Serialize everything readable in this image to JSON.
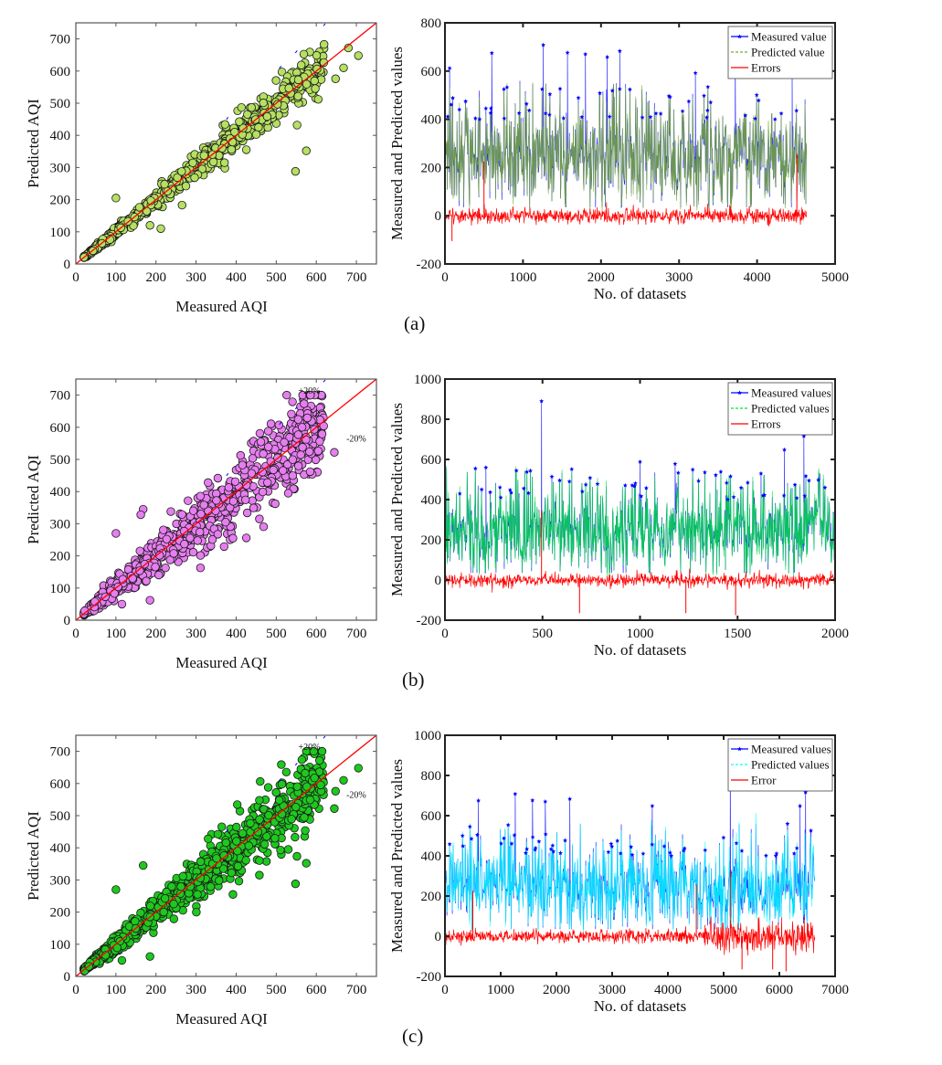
{
  "panels": [
    {
      "label": "(a)",
      "scatter": {
        "type": "scatter",
        "xlabel": "Measured AQI",
        "ylabel": "Predicted AQI",
        "xlim": [
          0,
          750
        ],
        "ylim": [
          0,
          750
        ],
        "xticks": [
          0,
          100,
          200,
          300,
          400,
          500,
          600,
          700
        ],
        "yticks": [
          0,
          100,
          200,
          300,
          400,
          500,
          600,
          700
        ],
        "marker_color": "#b5e061",
        "annotations": [],
        "reference_lines": [
          {
            "name": "1:1 line",
            "slope": 1.0,
            "color": "#ff0000"
          },
          {
            "name": "+20%",
            "slope": 1.2,
            "color": "#0000ff"
          }
        ],
        "outliers": [
          [
            100,
            205
          ],
          [
            212,
            110
          ],
          [
            548,
            288
          ],
          [
            575,
            352
          ],
          [
            552,
            432
          ],
          [
            648,
            576
          ],
          [
            668,
            610
          ],
          [
            705,
            648
          ],
          [
            680,
            672
          ],
          [
            185,
            120
          ],
          [
            265,
            183
          ]
        ],
        "spread": 0.06,
        "n_points": 900
      },
      "series_plot": {
        "type": "line",
        "xlabel": "No. of datasets",
        "ylabel": "Measured  and Predicted values",
        "xlim": [
          0,
          5000
        ],
        "ylim": [
          -200,
          800
        ],
        "xticks": [
          0,
          1000,
          2000,
          3000,
          4000,
          5000
        ],
        "yticks": [
          -200,
          0,
          200,
          400,
          600,
          800
        ],
        "n_samples": 4640,
        "legend": [
          {
            "label": "Measured value",
            "color": "#0000ff",
            "style": "line-star"
          },
          {
            "label": "Predicted value",
            "color": "#77ac30",
            "style": "dashed"
          },
          {
            "label": "Errors",
            "color": "#ff0000",
            "style": "solid"
          }
        ],
        "predicted_color": "#77ac30",
        "peaks": [
          [
            60,
            612
          ],
          [
            600,
            675
          ],
          [
            1260,
            708
          ],
          [
            1570,
            676
          ],
          [
            1800,
            670
          ],
          [
            2080,
            658
          ],
          [
            2240,
            683
          ],
          [
            3210,
            592
          ],
          [
            3720,
            648
          ],
          [
            4450,
            575
          ]
        ],
        "error_spikes": [
          [
            500,
            225
          ],
          [
            4510,
            258
          ],
          [
            90,
            -105
          ]
        ]
      }
    },
    {
      "label": "(b)",
      "scatter": {
        "type": "scatter",
        "xlabel": "Measured AQI",
        "ylabel": "Predicted AQI",
        "xlim": [
          0,
          750
        ],
        "ylim": [
          0,
          750
        ],
        "xticks": [
          0,
          100,
          200,
          300,
          400,
          500,
          600,
          700
        ],
        "yticks": [
          0,
          100,
          200,
          300,
          400,
          500,
          600,
          700
        ],
        "marker_color": "#e67ef0",
        "annotations": [
          "+20%",
          "-20%"
        ],
        "reference_lines": [
          {
            "name": "1:1 line",
            "slope": 1.0,
            "color": "#ff0000"
          },
          {
            "name": "+20%",
            "slope": 1.2,
            "color": "#0000ff"
          }
        ],
        "outliers": [
          [
            100,
            270
          ],
          [
            168,
            345
          ],
          [
            162,
            328
          ],
          [
            185,
            62
          ],
          [
            115,
            50
          ],
          [
            392,
            255
          ],
          [
            458,
            315
          ],
          [
            530,
            395
          ],
          [
            645,
            522
          ],
          [
            480,
            588
          ],
          [
            555,
            577
          ],
          [
            583,
            524
          ],
          [
            237,
            338
          ],
          [
            330,
            428
          ]
        ],
        "spread": 0.13,
        "n_points": 900
      },
      "series_plot": {
        "type": "line",
        "xlabel": "No. of datasets",
        "ylabel": "Measured and Predicted values",
        "xlim": [
          0,
          2000
        ],
        "ylim": [
          -200,
          1000
        ],
        "xticks": [
          0,
          500,
          1000,
          1500,
          2000
        ],
        "yticks": [
          -200,
          0,
          200,
          400,
          600,
          800,
          1000
        ],
        "n_samples": 2000,
        "legend": [
          {
            "label": "Measured values",
            "color": "#0000ff",
            "style": "line-star"
          },
          {
            "label": "Predicted values",
            "color": "#00e040",
            "style": "dashed"
          },
          {
            "label": "Errors",
            "color": "#ff0000",
            "style": "solid"
          }
        ],
        "predicted_color": "#00e040",
        "peaks": [
          [
            495,
            890
          ],
          [
            1000,
            588
          ],
          [
            1180,
            578
          ],
          [
            1740,
            648
          ],
          [
            1840,
            716
          ],
          [
            210,
            560
          ],
          [
            1620,
            530
          ]
        ],
        "error_spikes": [
          [
            495,
            345
          ],
          [
            690,
            -165
          ],
          [
            1235,
            -165
          ],
          [
            1490,
            -175
          ]
        ]
      }
    },
    {
      "label": "(c)",
      "scatter": {
        "type": "scatter",
        "xlabel": "Measured AQI",
        "ylabel": "Predicted AQI",
        "xlim": [
          0,
          750
        ],
        "ylim": [
          0,
          750
        ],
        "xticks": [
          0,
          100,
          200,
          300,
          400,
          500,
          600,
          700
        ],
        "yticks": [
          0,
          100,
          200,
          300,
          400,
          500,
          600,
          700
        ],
        "marker_color": "#1ec81e",
        "annotations": [
          "+20%",
          "-20%"
        ],
        "reference_lines": [
          {
            "name": "1:1 line",
            "slope": 1.0,
            "color": "#ff0000"
          },
          {
            "name": "+20%",
            "slope": 1.2,
            "color": "#0000ff"
          }
        ],
        "outliers": [
          [
            100,
            270
          ],
          [
            168,
            345
          ],
          [
            185,
            62
          ],
          [
            115,
            50
          ],
          [
            392,
            255
          ],
          [
            458,
            315
          ],
          [
            548,
            288
          ],
          [
            575,
            352
          ],
          [
            530,
            395
          ],
          [
            645,
            522
          ],
          [
            648,
            576
          ],
          [
            705,
            648
          ],
          [
            668,
            610
          ],
          [
            480,
            588
          ],
          [
            330,
            428
          ]
        ],
        "spread": 0.1,
        "n_points": 1100
      },
      "series_plot": {
        "type": "line",
        "xlabel": "No. of datasets",
        "ylabel": "Measured and Predicted values",
        "xlim": [
          0,
          7000
        ],
        "ylim": [
          -200,
          1000
        ],
        "xticks": [
          0,
          1000,
          2000,
          3000,
          4000,
          5000,
          6000,
          7000
        ],
        "yticks": [
          -200,
          0,
          200,
          400,
          600,
          800,
          1000
        ],
        "n_samples": 6640,
        "legend": [
          {
            "label": "Measured values",
            "color": "#0000ff",
            "style": "line-star"
          },
          {
            "label": "Predicted values",
            "color": "#00ffff",
            "style": "dashed"
          },
          {
            "label": "Error",
            "color": "#ff0000",
            "style": "solid"
          }
        ],
        "predicted_color": "#00ffff",
        "peaks": [
          [
            600,
            675
          ],
          [
            1260,
            708
          ],
          [
            1570,
            676
          ],
          [
            1800,
            670
          ],
          [
            2240,
            683
          ],
          [
            3720,
            648
          ],
          [
            5120,
            890
          ],
          [
            6370,
            648
          ],
          [
            6470,
            716
          ]
        ],
        "error_spikes": [
          [
            500,
            225
          ],
          [
            4510,
            258
          ],
          [
            5120,
            325
          ],
          [
            5330,
            -165
          ],
          [
            5880,
            -165
          ],
          [
            6120,
            -175
          ]
        ]
      }
    }
  ]
}
